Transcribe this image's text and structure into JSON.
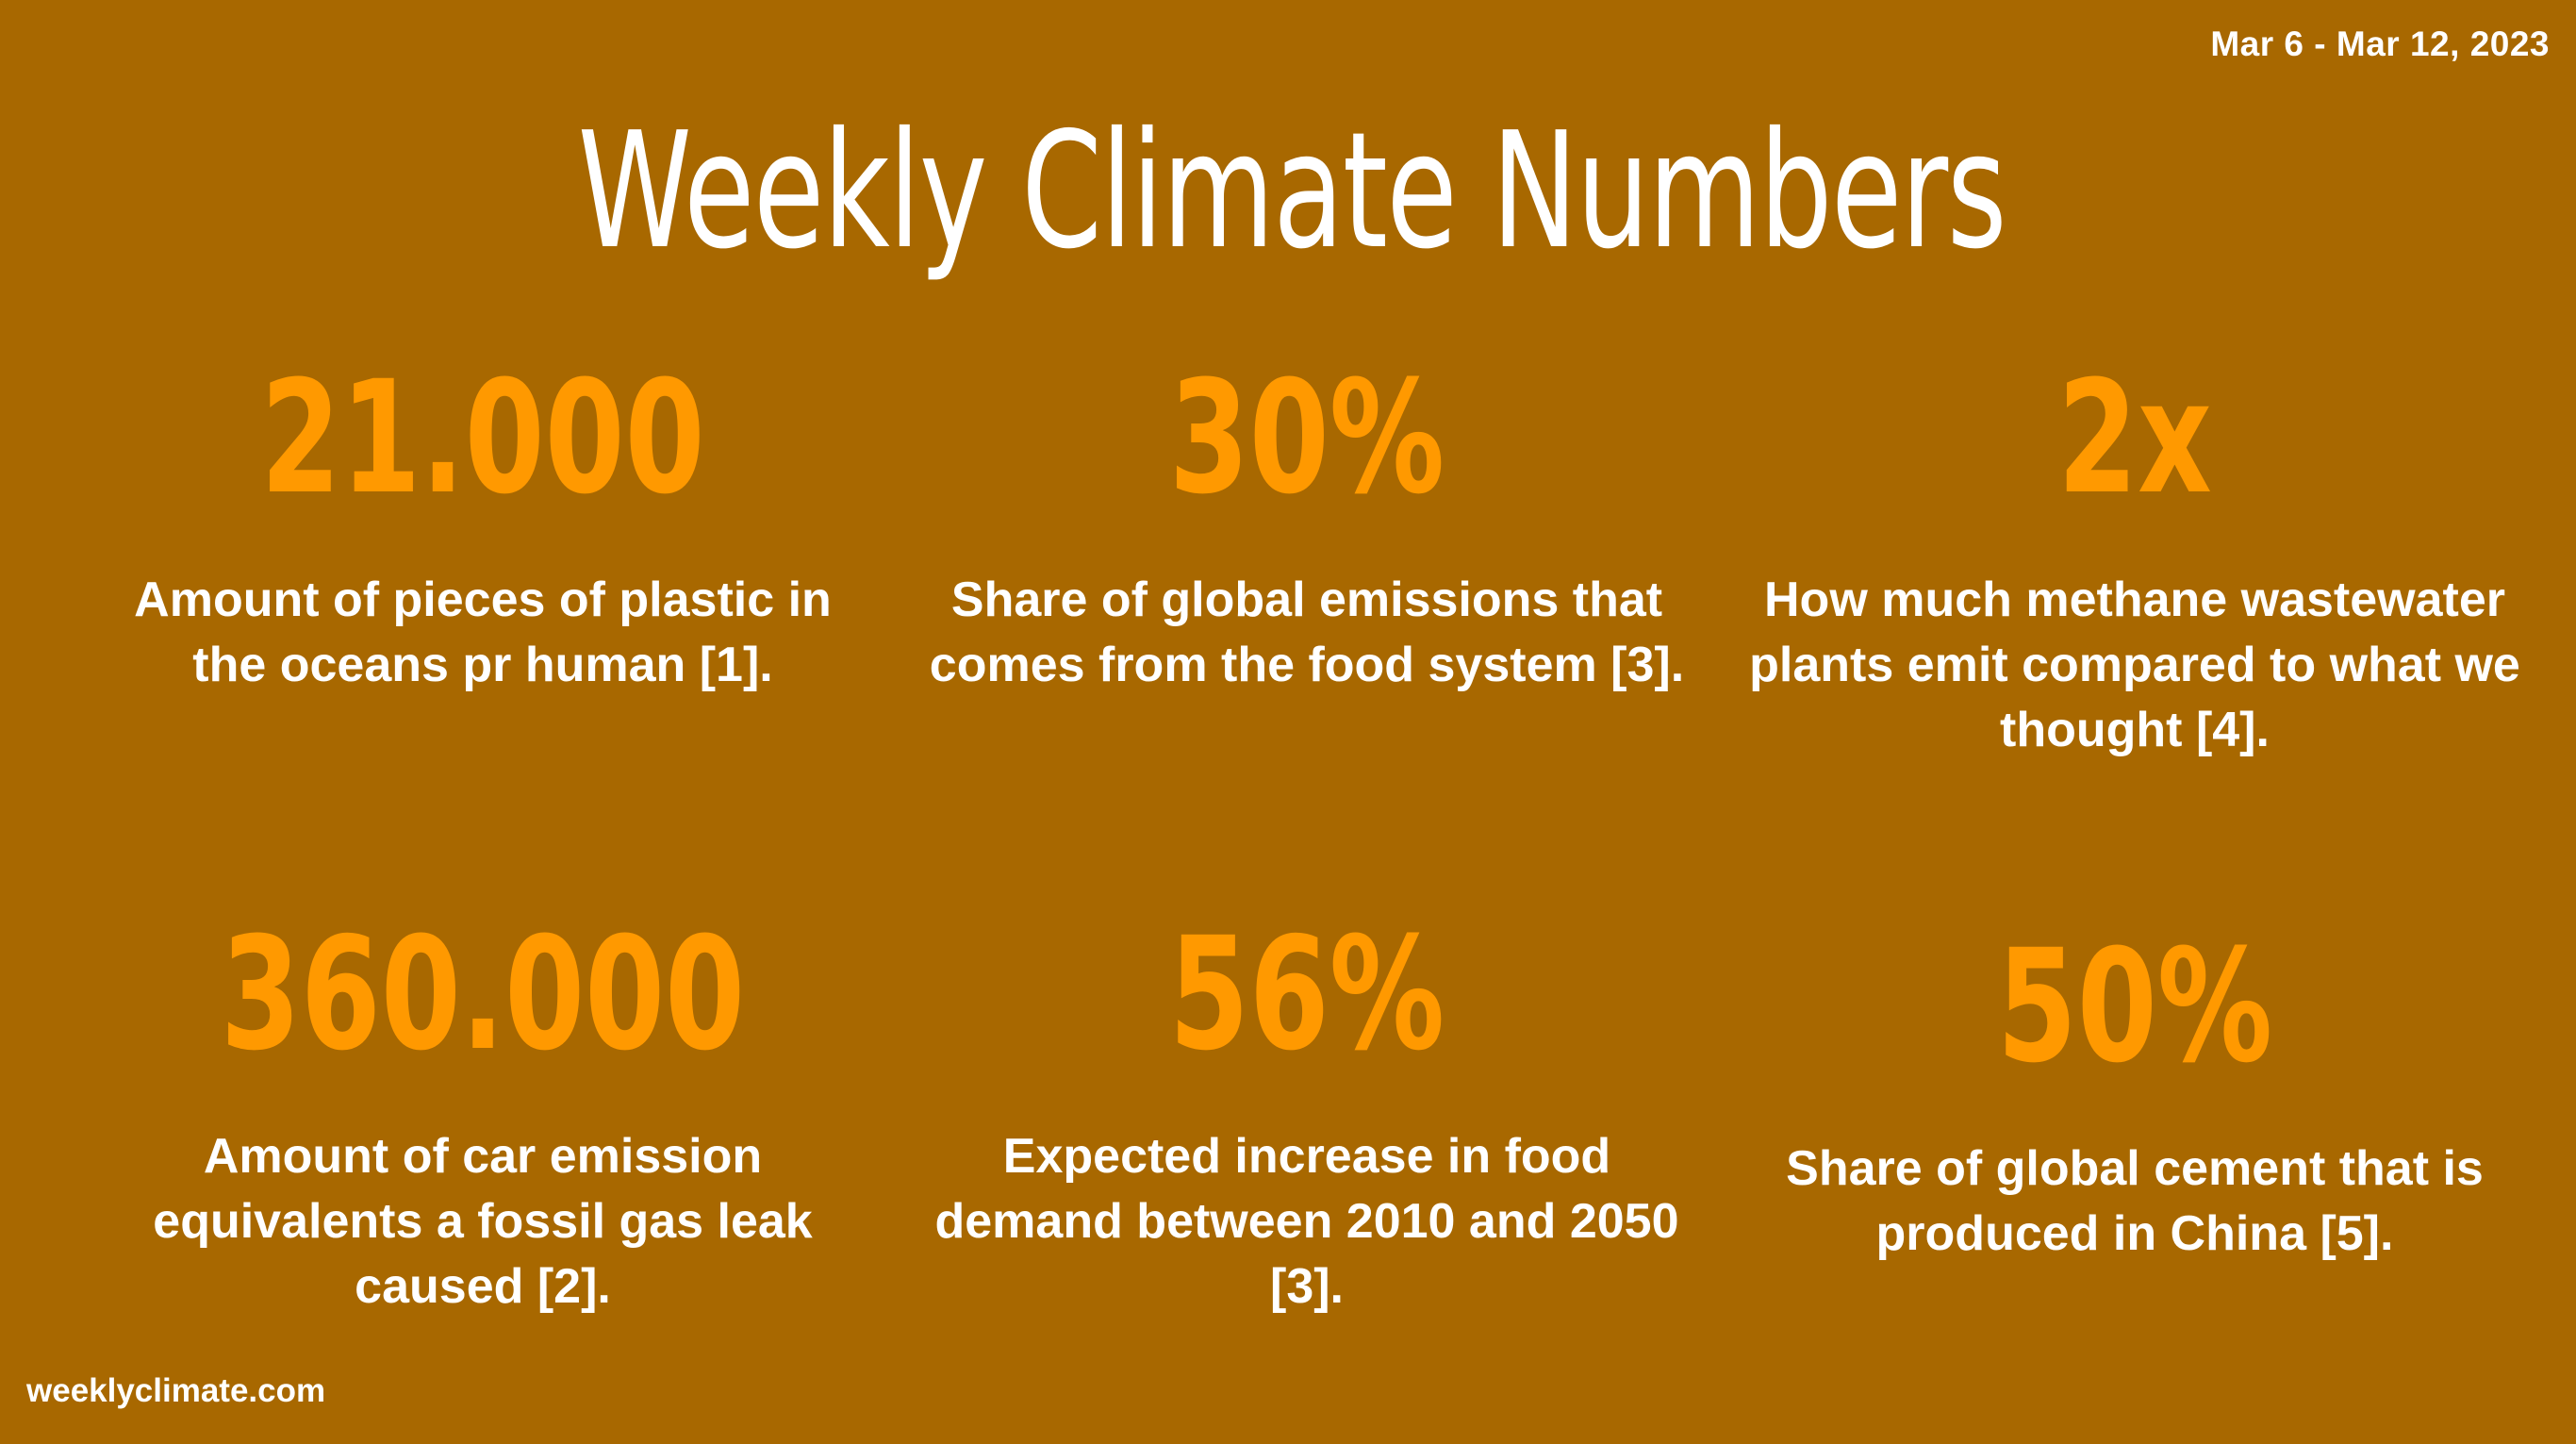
{
  "header": {
    "date_range": "Mar 6 - Mar 12, 2023",
    "title": "Weekly Climate Numbers"
  },
  "stats": [
    {
      "number": "21.000",
      "description": "Amount of pieces of plastic in the oceans pr human [1]."
    },
    {
      "number": "30%",
      "description": "Share of global emissions that comes from the food system [3]."
    },
    {
      "number": "2x",
      "description": "How much methane wastewater plants emit compared to what we thought [4]."
    },
    {
      "number": "360.000",
      "description": "Amount of car emission equivalents a fossil gas leak caused [2]."
    },
    {
      "number": "56%",
      "description": "Expected increase in food demand between 2010 and 2050 [3]."
    },
    {
      "number": "50%",
      "description": "Share of global cement that is produced in China [5]."
    }
  ],
  "footer": {
    "website": "weeklyclimate.com"
  },
  "colors": {
    "background": "#a86800",
    "accent": "#ff9900",
    "text": "#ffffff"
  }
}
